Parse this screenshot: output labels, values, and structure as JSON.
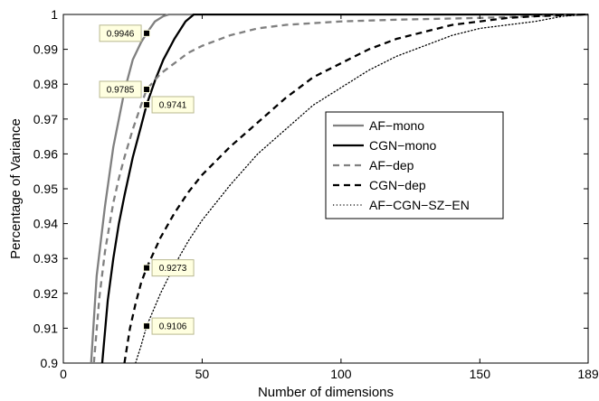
{
  "chart_data": {
    "type": "line",
    "title": "",
    "xlabel": "Number of dimensions",
    "ylabel": "Percentage of Variance",
    "xlim": [
      0,
      189
    ],
    "ylim": [
      0.9,
      1
    ],
    "xticks": [
      0,
      50,
      100,
      150,
      189
    ],
    "yticks": [
      0.9,
      0.91,
      0.92,
      0.93,
      0.94,
      0.95,
      0.96,
      0.97,
      0.98,
      0.99,
      1
    ],
    "ytick_labels": [
      "0.9",
      "0.91",
      "0.92",
      "0.93",
      "0.94",
      "0.95",
      "0.96",
      "0.97",
      "0.98",
      "0.99",
      "1"
    ],
    "grid": false,
    "legend_position": "center-right",
    "series": [
      {
        "name": "AF−mono",
        "color": "#808080",
        "dash": "solid",
        "x": [
          10,
          12,
          15,
          18,
          20,
          22,
          25,
          28,
          30,
          33,
          36,
          38,
          40,
          189
        ],
        "y": [
          0.9,
          0.925,
          0.945,
          0.962,
          0.97,
          0.978,
          0.987,
          0.992,
          0.9946,
          0.998,
          0.9995,
          1.0,
          1.0,
          1.0
        ]
      },
      {
        "name": "CGN−mono",
        "color": "#000000",
        "dash": "solid",
        "x": [
          14,
          16,
          18,
          20,
          22,
          25,
          28,
          30,
          33,
          36,
          40,
          44,
          47,
          50,
          189
        ],
        "y": [
          0.9,
          0.918,
          0.93,
          0.94,
          0.948,
          0.959,
          0.968,
          0.9741,
          0.981,
          0.987,
          0.993,
          0.998,
          1.0,
          1.0,
          1.0
        ]
      },
      {
        "name": "AF−dep",
        "color": "#808080",
        "dash": "dashed",
        "x": [
          11,
          13,
          15,
          18,
          20,
          22,
          25,
          28,
          30,
          35,
          40,
          45,
          50,
          60,
          70,
          80,
          100,
          120,
          150,
          189
        ],
        "y": [
          0.9,
          0.919,
          0.932,
          0.946,
          0.953,
          0.959,
          0.967,
          0.974,
          0.9785,
          0.983,
          0.986,
          0.989,
          0.991,
          0.994,
          0.996,
          0.997,
          0.998,
          0.9985,
          0.999,
          1.0
        ]
      },
      {
        "name": "CGN−dep",
        "color": "#000000",
        "dash": "dashed",
        "x": [
          22,
          24,
          26,
          28,
          30,
          35,
          40,
          45,
          50,
          60,
          70,
          80,
          90,
          100,
          110,
          120,
          130,
          140,
          150,
          160,
          170,
          180,
          189
        ],
        "y": [
          0.9,
          0.91,
          0.917,
          0.923,
          0.9273,
          0.936,
          0.943,
          0.949,
          0.954,
          0.962,
          0.969,
          0.976,
          0.982,
          0.986,
          0.99,
          0.993,
          0.995,
          0.997,
          0.998,
          0.999,
          0.9995,
          0.9998,
          1.0
        ]
      },
      {
        "name": "AF−CGN−SZ−EN",
        "color": "#000000",
        "dash": "dotted",
        "x": [
          26,
          28,
          30,
          35,
          40,
          45,
          50,
          60,
          70,
          80,
          90,
          100,
          110,
          120,
          130,
          140,
          150,
          160,
          170,
          180,
          189
        ],
        "y": [
          0.9,
          0.905,
          0.9106,
          0.92,
          0.928,
          0.935,
          0.941,
          0.951,
          0.96,
          0.967,
          0.974,
          0.979,
          0.984,
          0.988,
          0.991,
          0.994,
          0.996,
          0.997,
          0.998,
          0.9995,
          1.0
        ]
      }
    ],
    "annotations": [
      {
        "text": "0.9946",
        "x": 30,
        "y": 0.9946,
        "box_side": "left"
      },
      {
        "text": "0.9785",
        "x": 30,
        "y": 0.9785,
        "box_side": "left"
      },
      {
        "text": "0.9741",
        "x": 30,
        "y": 0.9741,
        "box_side": "right"
      },
      {
        "text": "0.9273",
        "x": 30,
        "y": 0.9273,
        "box_side": "right"
      },
      {
        "text": "0.9106",
        "x": 30,
        "y": 0.9106,
        "box_side": "right"
      }
    ]
  }
}
